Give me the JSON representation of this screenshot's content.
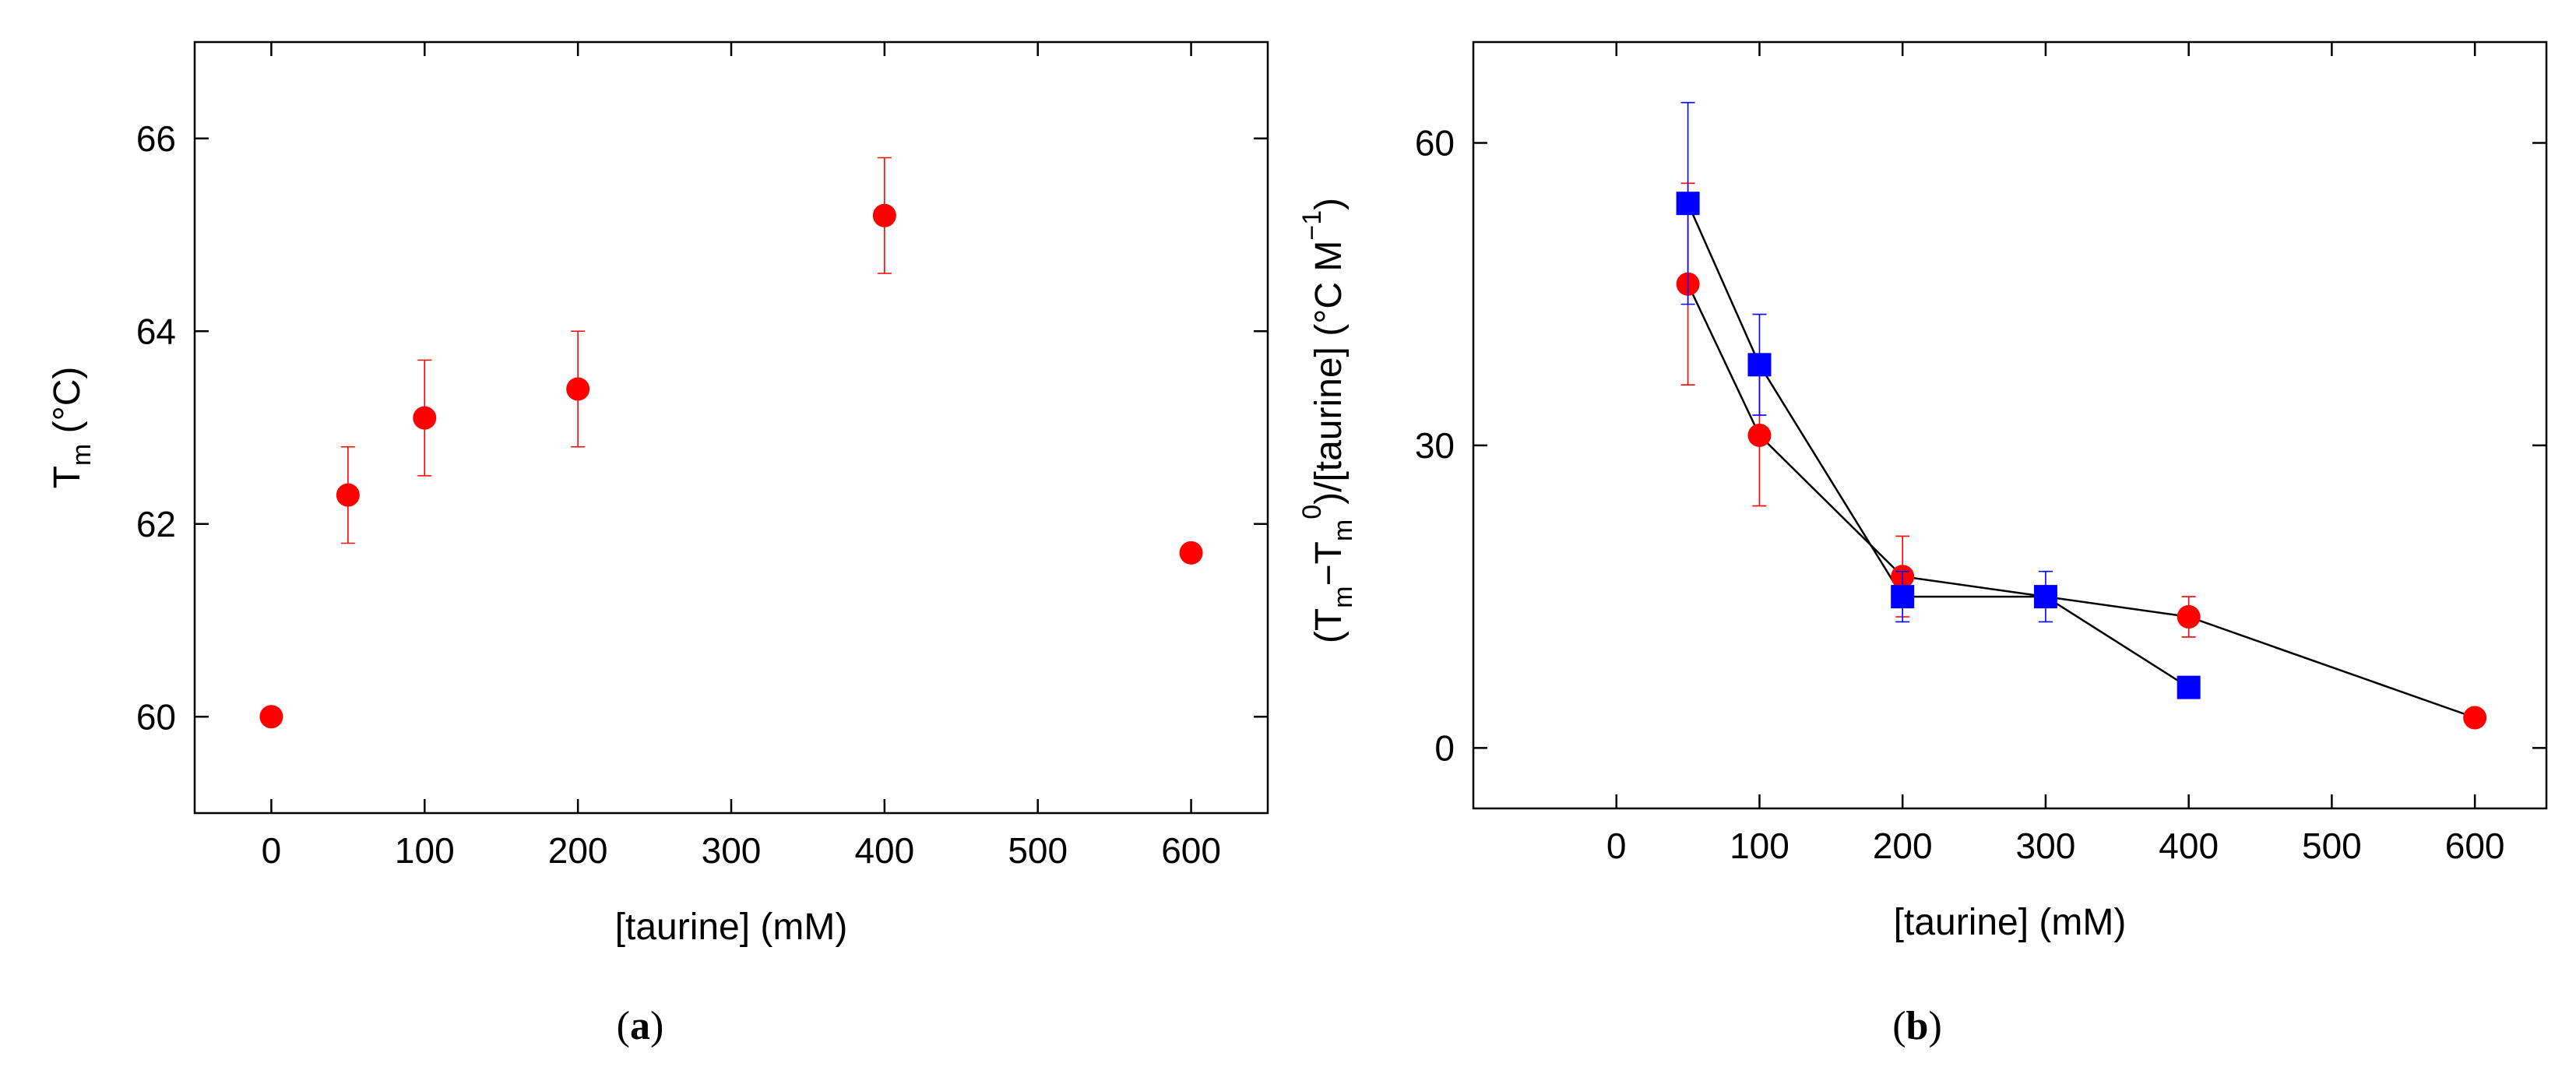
{
  "chart_data": [
    {
      "type": "scatter",
      "panel_label": "a",
      "xlabel": "[taurine] (mM)",
      "ylabel": {
        "main": "T",
        "sub": "m",
        "rest": " (°C)"
      },
      "xlim": [
        -50,
        650
      ],
      "ylim": [
        59,
        67
      ],
      "xticks": [
        "0",
        "100",
        "200",
        "300",
        "400",
        "500",
        "600"
      ],
      "yticks": [
        "60",
        "62",
        "64",
        "66"
      ],
      "grid": false,
      "series": [
        {
          "name": "Tm",
          "color": "#ff0000",
          "marker": "circle",
          "connected": false,
          "x": [
            0,
            50,
            100,
            200,
            400,
            600
          ],
          "y": [
            60.0,
            62.3,
            63.1,
            63.4,
            65.2,
            61.7
          ],
          "err": [
            0,
            0.5,
            0.6,
            0.6,
            0.6,
            0
          ]
        }
      ]
    },
    {
      "type": "line",
      "panel_label": "b",
      "xlabel": "[taurine] (mM)",
      "ylabel": {
        "p1": "(T",
        "s1": "m",
        "p2": "−T",
        "s2": "m",
        "sup1": "0",
        "p3": ")/[taurine]  (°C M",
        "sup2": "−1",
        "p4": ")"
      },
      "xlim": [
        -100,
        650
      ],
      "ylim": [
        -6,
        70
      ],
      "xticks": [
        "0",
        "100",
        "200",
        "300",
        "400",
        "500",
        "600"
      ],
      "yticks": [
        "0",
        "30",
        "60"
      ],
      "grid": false,
      "series": [
        {
          "name": "red circles",
          "color": "#ff0000",
          "marker": "circle",
          "connected": true,
          "x": [
            50,
            100,
            200,
            300,
            400,
            600
          ],
          "y": [
            46,
            31,
            17,
            15,
            13,
            3
          ],
          "err": [
            10,
            7,
            4,
            0,
            2,
            0
          ]
        },
        {
          "name": "blue squares",
          "color": "#0000ff",
          "marker": "square",
          "connected": true,
          "x": [
            50,
            100,
            200,
            300,
            400
          ],
          "y": [
            54,
            38,
            15,
            15,
            6
          ],
          "err": [
            10,
            5,
            2.5,
            2.5,
            0.8
          ]
        }
      ]
    }
  ]
}
